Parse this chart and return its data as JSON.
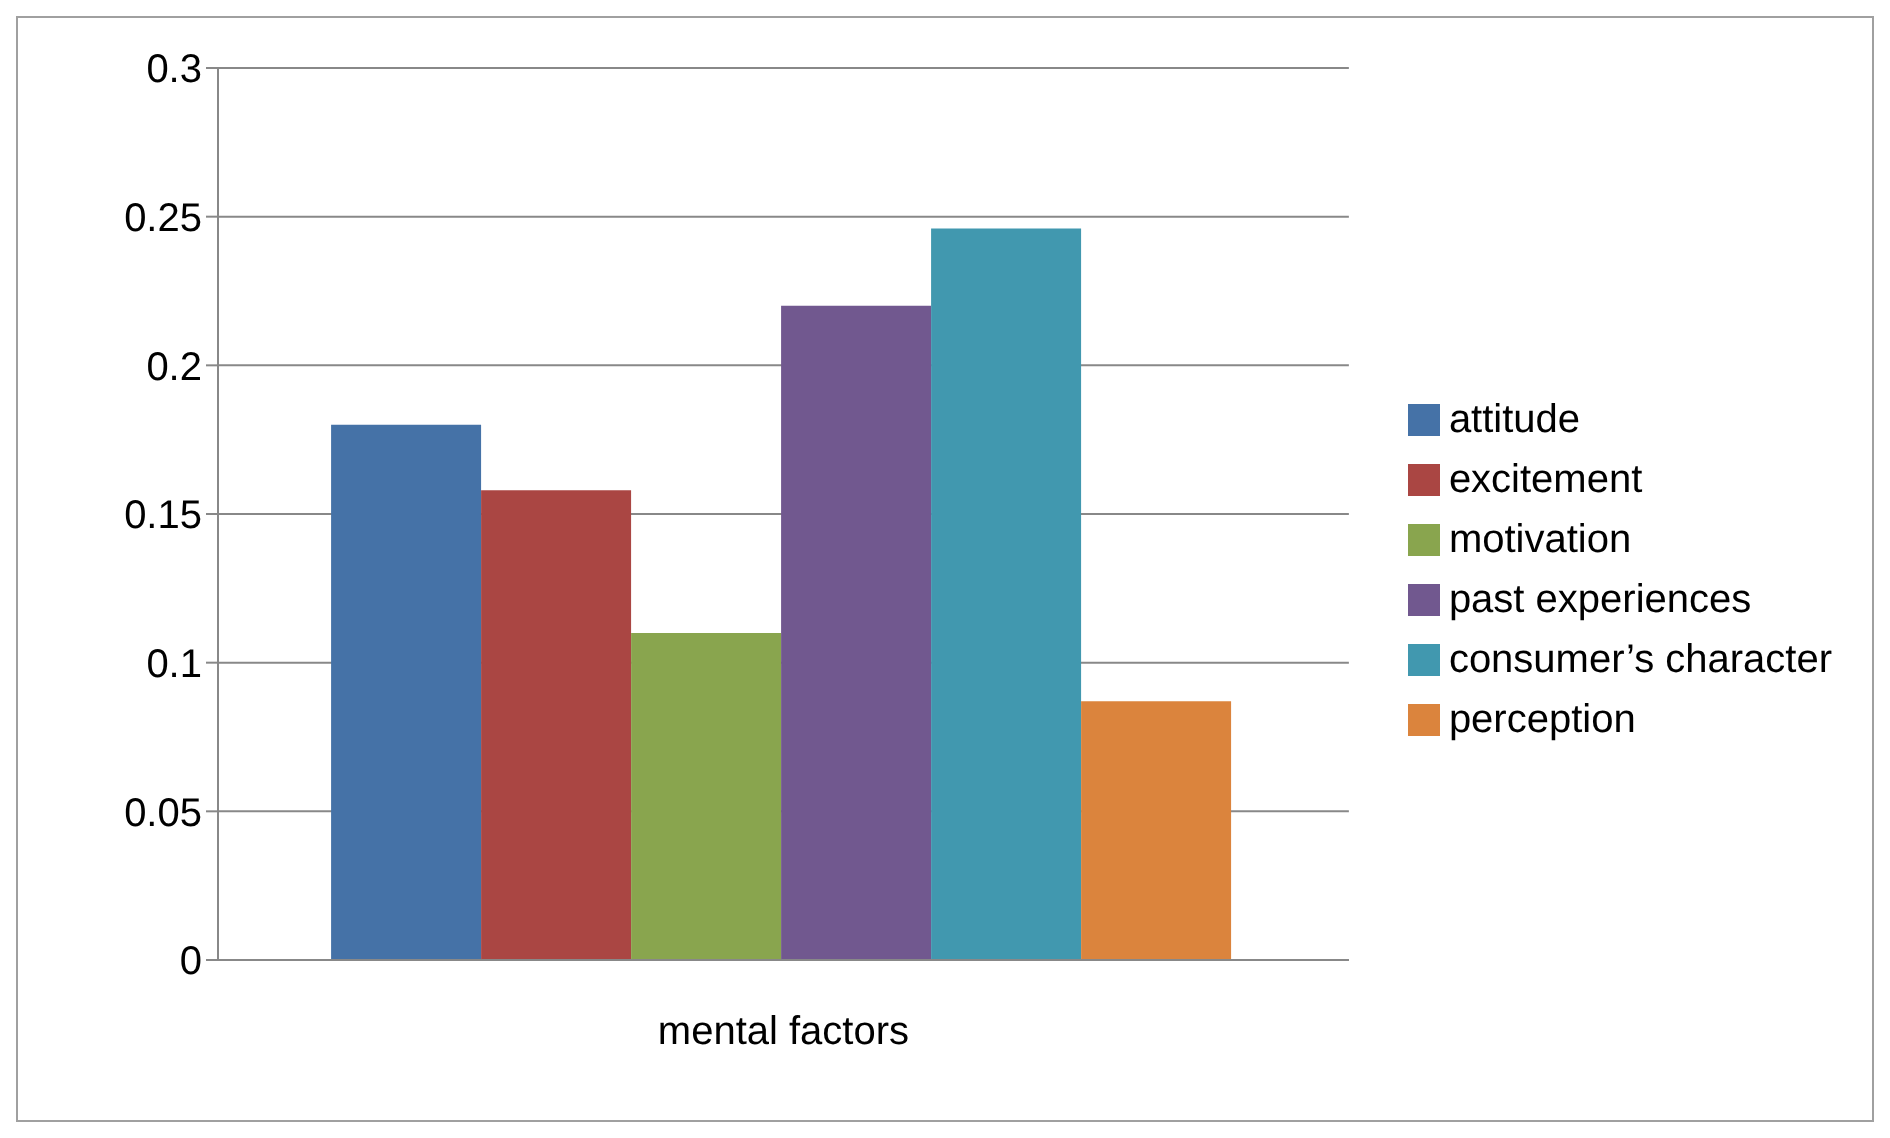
{
  "chart_data": {
    "type": "bar",
    "categories": [
      "mental factors"
    ],
    "series": [
      {
        "name": "attitude",
        "color": "#4572a7",
        "values": [
          0.18
        ]
      },
      {
        "name": "excitement",
        "color": "#aa4643",
        "values": [
          0.158
        ]
      },
      {
        "name": "motivation",
        "color": "#89a54e",
        "values": [
          0.11
        ]
      },
      {
        "name": "past experiences",
        "color": "#71588f",
        "values": [
          0.22
        ]
      },
      {
        "name": "consumer’s character",
        "color": "#4198af",
        "values": [
          0.246
        ]
      },
      {
        "name": "perception",
        "color": "#db843d",
        "values": [
          0.087
        ]
      }
    ],
    "ylim": [
      0,
      0.3
    ],
    "yticks": [
      0,
      0.05,
      0.1,
      0.15,
      0.2,
      0.25,
      0.3
    ],
    "grid": "y",
    "legend": "right"
  }
}
